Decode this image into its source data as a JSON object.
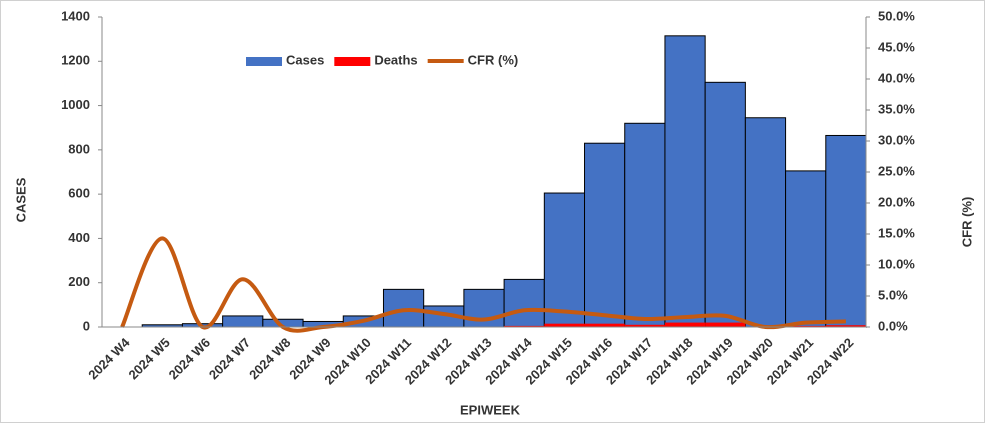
{
  "chart_data": {
    "type": "combo",
    "x_label": "EPIWEEK",
    "y_label": "CASES",
    "y2_label": "CFR (%)",
    "categories": [
      "2024 W4",
      "2024 W5",
      "2024 W6",
      "2024 W7",
      "2024 W8",
      "2024 W9",
      "2024 W10",
      "2024 W11",
      "2024 W12",
      "2024 W13",
      "2024 W14",
      "2024 W15",
      "2024 W16",
      "2024 W17",
      "2024 W18",
      "2024 W19",
      "2024 W20",
      "2024 W21",
      "2024 W22"
    ],
    "series": [
      {
        "name": "Cases",
        "color": "#4472c4",
        "kind": "bar",
        "values": [
          0,
          10,
          15,
          50,
          35,
          25,
          50,
          170,
          95,
          170,
          215,
          605,
          830,
          920,
          1315,
          1105,
          945,
          705,
          865
        ]
      },
      {
        "name": "Deaths",
        "color": "#ff0000",
        "kind": "bar",
        "values": [
          0,
          1,
          0,
          2,
          0,
          0,
          0,
          2,
          0,
          0,
          5,
          15,
          15,
          10,
          20,
          20,
          0,
          5,
          8
        ]
      },
      {
        "name": "CFR (%)",
        "color": "#c55a11",
        "kind": "line",
        "axis": "y2",
        "values": [
          0,
          14.3,
          0,
          7.7,
          0,
          0,
          1.0,
          2.7,
          2.1,
          1.2,
          2.7,
          2.5,
          1.9,
          1.3,
          1.6,
          1.8,
          0,
          0.7,
          0.9
        ]
      }
    ],
    "ylim": [
      0,
      1400
    ],
    "yticks": [
      0,
      200,
      400,
      600,
      800,
      1000,
      1200,
      1400
    ],
    "y2lim": [
      0,
      50
    ],
    "y2ticks": [
      {
        "value": 0,
        "label": "0.0%"
      },
      {
        "value": 5,
        "label": "5.0%"
      },
      {
        "value": 10,
        "label": "10.0%"
      },
      {
        "value": 15,
        "label": "15.0%"
      },
      {
        "value": 20,
        "label": "20.0%"
      },
      {
        "value": 25,
        "label": "25.0%"
      },
      {
        "value": 30,
        "label": "30.0%"
      },
      {
        "value": 35,
        "label": "35.0%"
      },
      {
        "value": 40,
        "label": "40.0%"
      },
      {
        "value": 45,
        "label": "45.0%"
      },
      {
        "value": 50,
        "label": "50.0%"
      }
    ],
    "legend": "top"
  }
}
